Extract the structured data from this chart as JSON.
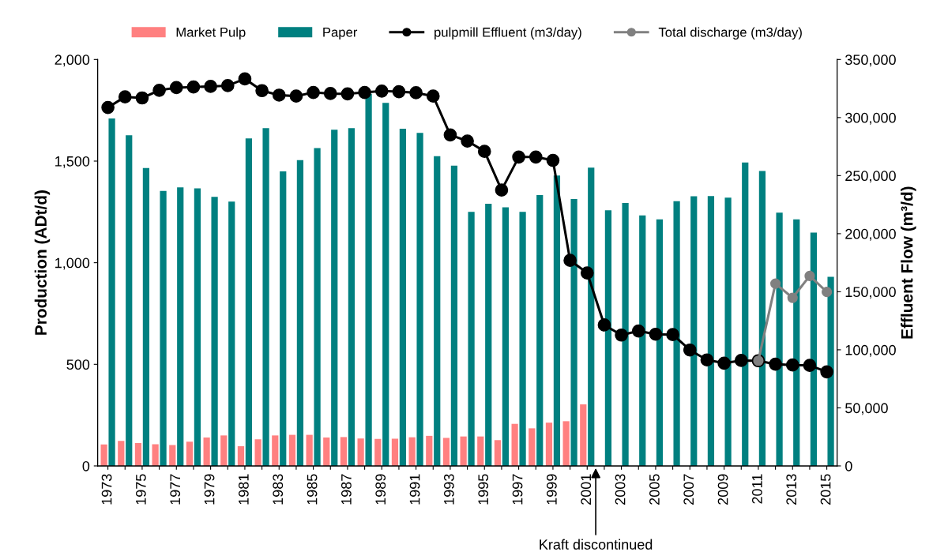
{
  "chart_data": {
    "type": "bar",
    "ylabel": "Production (ADt/d)",
    "y2label": "Effluent Flow (m³/d)",
    "categories": [
      "1973",
      null,
      "1975",
      null,
      "1977",
      null,
      "1979",
      null,
      "1981",
      null,
      "1983",
      null,
      "1985",
      null,
      "1987",
      null,
      "1989",
      null,
      "1991",
      null,
      "1993",
      null,
      "1995",
      null,
      "1997",
      null,
      "1999",
      null,
      "2001",
      null,
      "2003",
      null,
      "2005",
      null,
      "2007",
      null,
      "2009",
      null,
      "2011",
      null,
      "2013",
      null,
      "2015"
    ],
    "series": [
      {
        "name": "Market Pulp",
        "color": "#ff8080",
        "values": [
          106,
          123,
          113,
          107,
          103,
          119,
          140,
          150,
          97,
          131,
          150,
          153,
          153,
          140,
          142,
          135,
          133,
          134,
          141,
          148,
          138,
          145,
          145,
          127,
          207,
          185,
          213,
          220,
          303,
          null,
          null,
          null,
          null,
          null,
          null,
          null,
          null,
          null,
          null,
          null,
          null,
          null,
          null
        ]
      },
      {
        "name": "Paper",
        "color": "#008080",
        "values": [
          1710,
          1627,
          1466,
          1353,
          1371,
          1366,
          1324,
          1301,
          1612,
          1662,
          1449,
          1505,
          1564,
          1654,
          1662,
          1831,
          1787,
          1659,
          1639,
          1524,
          1478,
          1250,
          1290,
          1273,
          1250,
          1333,
          1429,
          1313,
          1468,
          1258,
          1294,
          1233,
          1213,
          1303,
          1327,
          1328,
          1320,
          1493,
          1451,
          1246,
          1213,
          1148,
          931
        ]
      },
      {
        "name": "pulpmill Effluent (m3/day)",
        "type": "line",
        "axis": "y2",
        "color": "#000000",
        "values": [
          308700,
          317800,
          316900,
          323500,
          325800,
          326300,
          326800,
          327500,
          333300,
          323200,
          319300,
          318500,
          321600,
          320700,
          320400,
          321600,
          322800,
          322300,
          321400,
          318500,
          285000,
          279800,
          270900,
          237600,
          266000,
          266000,
          263100,
          177000,
          166200,
          121400,
          112700,
          116200,
          113400,
          113100,
          99800,
          91300,
          88500,
          90800,
          90600,
          87600,
          86900,
          86600,
          81000
        ]
      },
      {
        "name": "Total discharge (m3/day)",
        "type": "line",
        "axis": "y2",
        "color": "#808080",
        "values": [
          null,
          null,
          null,
          null,
          null,
          null,
          null,
          null,
          null,
          null,
          null,
          null,
          null,
          null,
          null,
          null,
          null,
          null,
          null,
          null,
          null,
          null,
          null,
          null,
          null,
          null,
          null,
          null,
          null,
          null,
          null,
          null,
          null,
          null,
          null,
          null,
          null,
          null,
          90600,
          157000,
          144800,
          163600,
          149800
        ]
      }
    ],
    "ylim": [
      0,
      2000
    ],
    "yticks": [
      {
        "value": 0,
        "label": "0"
      },
      {
        "value": 500,
        "label": "500"
      },
      {
        "value": 1000,
        "label": "1,000"
      },
      {
        "value": 1500,
        "label": "1,500"
      },
      {
        "value": 2000,
        "label": "2,000"
      }
    ],
    "y2lim": [
      0,
      350000
    ],
    "y2ticks": [
      {
        "value": 0,
        "label": "0"
      },
      {
        "value": 50000,
        "label": "50,000"
      },
      {
        "value": 100000,
        "label": "100,000"
      },
      {
        "value": 150000,
        "label": "150,000"
      },
      {
        "value": 200000,
        "label": "200,000"
      },
      {
        "value": 250000,
        "label": "250,000"
      },
      {
        "value": 300000,
        "label": "300,000"
      },
      {
        "value": 350000,
        "label": "350,000"
      }
    ],
    "annotations": [
      "Kraft discontinued"
    ],
    "marker": "circle",
    "line_style": "solid",
    "legend": "top",
    "grid": false
  }
}
